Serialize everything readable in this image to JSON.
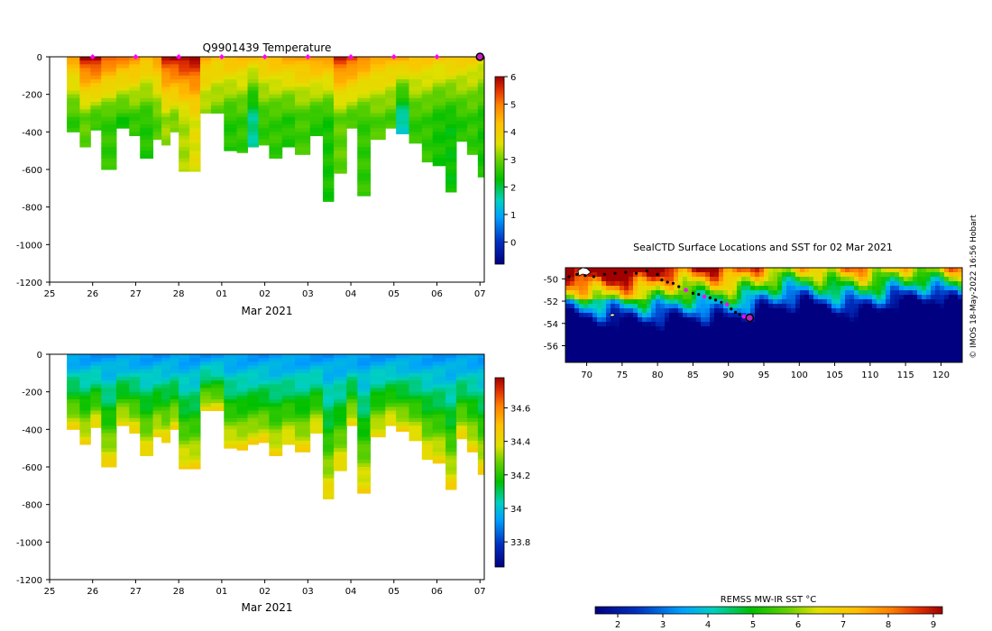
{
  "chart_data": [
    {
      "type": "heatmap",
      "title": "Q9901439  Temperature",
      "xlabel": "Mar 2021",
      "ylabel": "",
      "x_tick_labels": [
        "25",
        "26",
        "27",
        "28",
        "01",
        "02",
        "03",
        "04",
        "05",
        "06",
        "07"
      ],
      "x_range_days": [
        25.0,
        35.1
      ],
      "ylim": [
        -1200,
        0
      ],
      "y_ticks": [
        0,
        -200,
        -400,
        -600,
        -800,
        -1000,
        -1200
      ],
      "colorbar": {
        "range": [
          -0.8,
          6.0
        ],
        "ticks": [
          0,
          1,
          2,
          3,
          4,
          5,
          6
        ]
      },
      "surface_marker_days": [
        26,
        27,
        28,
        29,
        30,
        31,
        32,
        33,
        34,
        35
      ],
      "latest_marker_day": 35,
      "profiles": [
        {
          "day": 25.4,
          "depth": 400,
          "surf": 4.6,
          "deep": 2.6
        },
        {
          "day": 25.7,
          "depth": 480,
          "surf": 5.8,
          "deep": 2.9
        },
        {
          "day": 25.95,
          "depth": 390,
          "surf": 6.0,
          "deep": 2.6
        },
        {
          "day": 26.2,
          "depth": 600,
          "surf": 5.3,
          "deep": 2.6
        },
        {
          "day": 26.55,
          "depth": 380,
          "surf": 5.0,
          "deep": 2.4
        },
        {
          "day": 26.85,
          "depth": 420,
          "surf": 4.8,
          "deep": 2.6
        },
        {
          "day": 27.1,
          "depth": 540,
          "surf": 4.4,
          "deep": 2.5
        },
        {
          "day": 27.4,
          "depth": 440,
          "surf": 4.7,
          "deep": 2.8
        },
        {
          "day": 27.6,
          "depth": 470,
          "surf": 5.7,
          "deep": 3.2
        },
        {
          "day": 27.8,
          "depth": 400,
          "surf": 5.9,
          "deep": 3.0
        },
        {
          "day": 28.0,
          "depth": 610,
          "surf": 6.0,
          "deep": 3.3
        },
        {
          "day": 28.25,
          "depth": 610,
          "surf": 6.0,
          "deep": 3.6
        },
        {
          "day": 28.5,
          "depth": 300,
          "surf": 4.4,
          "deep": 3.0
        },
        {
          "day": 28.75,
          "depth": 300,
          "surf": 4.2,
          "deep": 2.8
        },
        {
          "day": 29.05,
          "depth": 500,
          "surf": 4.4,
          "deep": 2.5
        },
        {
          "day": 29.35,
          "depth": 510,
          "surf": 4.3,
          "deep": 2.6
        },
        {
          "day": 29.6,
          "depth": 480,
          "surf": 4.2,
          "deep": 1.7
        },
        {
          "day": 29.85,
          "depth": 470,
          "surf": 4.3,
          "deep": 2.6
        },
        {
          "day": 30.1,
          "depth": 540,
          "surf": 4.4,
          "deep": 2.6
        },
        {
          "day": 30.4,
          "depth": 480,
          "surf": 4.5,
          "deep": 2.5
        },
        {
          "day": 30.7,
          "depth": 520,
          "surf": 4.6,
          "deep": 2.7
        },
        {
          "day": 31.05,
          "depth": 420,
          "surf": 4.8,
          "deep": 2.5
        },
        {
          "day": 31.35,
          "depth": 770,
          "surf": 4.7,
          "deep": 2.4
        },
        {
          "day": 31.6,
          "depth": 620,
          "surf": 5.6,
          "deep": 2.9
        },
        {
          "day": 31.9,
          "depth": 380,
          "surf": 5.4,
          "deep": 2.7
        },
        {
          "day": 32.15,
          "depth": 740,
          "surf": 5.0,
          "deep": 2.6
        },
        {
          "day": 32.45,
          "depth": 440,
          "surf": 4.5,
          "deep": 2.8
        },
        {
          "day": 32.8,
          "depth": 380,
          "surf": 4.4,
          "deep": 2.7
        },
        {
          "day": 33.05,
          "depth": 410,
          "surf": 4.6,
          "deep": 1.5
        },
        {
          "day": 33.35,
          "depth": 460,
          "surf": 4.3,
          "deep": 2.6
        },
        {
          "day": 33.65,
          "depth": 560,
          "surf": 4.2,
          "deep": 2.6
        },
        {
          "day": 33.9,
          "depth": 580,
          "surf": 4.1,
          "deep": 2.4
        },
        {
          "day": 34.2,
          "depth": 720,
          "surf": 4.2,
          "deep": 2.3
        },
        {
          "day": 34.45,
          "depth": 450,
          "surf": 4.1,
          "deep": 2.5
        },
        {
          "day": 34.7,
          "depth": 520,
          "surf": 4.0,
          "deep": 2.6
        },
        {
          "day": 34.95,
          "depth": 640,
          "surf": 3.8,
          "deep": 2.4
        }
      ]
    },
    {
      "type": "heatmap",
      "title": "",
      "xlabel": "Mar 2021",
      "ylabel": "",
      "x_tick_labels": [
        "25",
        "26",
        "27",
        "28",
        "01",
        "02",
        "03",
        "04",
        "05",
        "06",
        "07"
      ],
      "x_range_days": [
        25.0,
        35.1
      ],
      "ylim": [
        -1200,
        0
      ],
      "y_ticks": [
        0,
        -200,
        -400,
        -600,
        -800,
        -1000,
        -1200
      ],
      "colorbar": {
        "range": [
          33.65,
          34.78
        ],
        "ticks": [
          33.8,
          34,
          34.2,
          34.4,
          34.6
        ],
        "tick_labels": [
          "33.8",
          "34",
          "34.2",
          "34.4",
          "34.6"
        ]
      },
      "surface": 33.93,
      "deep_value_rule": "34.45 at the deepest bin, grading up to the surface value"
    },
    {
      "type": "heatmap",
      "title": "SealCTD Surface Locations and SST for 02 Mar 2021",
      "xlabel": "",
      "ylabel": "",
      "x_ticks": [
        70,
        75,
        80,
        85,
        90,
        95,
        100,
        105,
        110,
        115,
        120
      ],
      "y_ticks": [
        -50,
        -52,
        -54,
        -56
      ],
      "xlim": [
        67,
        123
      ],
      "ylim": [
        -57.5,
        -49.0
      ],
      "track": [
        [
          67.5,
          -49.8
        ],
        [
          68.6,
          -49.6
        ],
        [
          69.8,
          -49.7
        ],
        [
          71.0,
          -49.8
        ],
        [
          72.5,
          -49.6
        ],
        [
          74.0,
          -49.5
        ],
        [
          75.5,
          -49.4
        ],
        [
          77.0,
          -49.5
        ],
        [
          78.5,
          -49.3
        ],
        [
          80.0,
          -49.6
        ],
        [
          80.6,
          -50.1
        ],
        [
          81.4,
          -50.3
        ],
        [
          82.2,
          -50.4
        ],
        [
          83.0,
          -50.7
        ],
        [
          84.0,
          -51.0
        ],
        [
          85.0,
          -51.3
        ],
        [
          85.8,
          -51.4
        ],
        [
          86.6,
          -51.6
        ],
        [
          87.4,
          -51.7
        ],
        [
          88.2,
          -51.9
        ],
        [
          89.0,
          -52.1
        ],
        [
          89.8,
          -52.3
        ],
        [
          90.4,
          -52.7
        ],
        [
          91.0,
          -53.0
        ],
        [
          91.6,
          -53.2
        ],
        [
          92.2,
          -53.4
        ],
        [
          93.0,
          -53.5
        ]
      ],
      "surface_locations": [
        [
          84.0,
          -51.0
        ],
        [
          86.6,
          -51.6
        ],
        [
          89.8,
          -52.3
        ],
        [
          92.2,
          -53.4
        ]
      ],
      "latest_location": [
        93.0,
        -53.5
      ],
      "colorbar": {
        "label": "REMSS MW-IR SST °C",
        "range": [
          1.5,
          9.2
        ],
        "ticks": [
          2,
          3,
          4,
          5,
          6,
          7,
          8,
          9
        ]
      }
    }
  ],
  "footer": {
    "credit": "© IMOS 18-May-2022 16:56 Hobart"
  },
  "colors": {
    "marker_magenta": "#ff00ff",
    "latest_marker": "#c020c0",
    "axis": "#000000"
  }
}
